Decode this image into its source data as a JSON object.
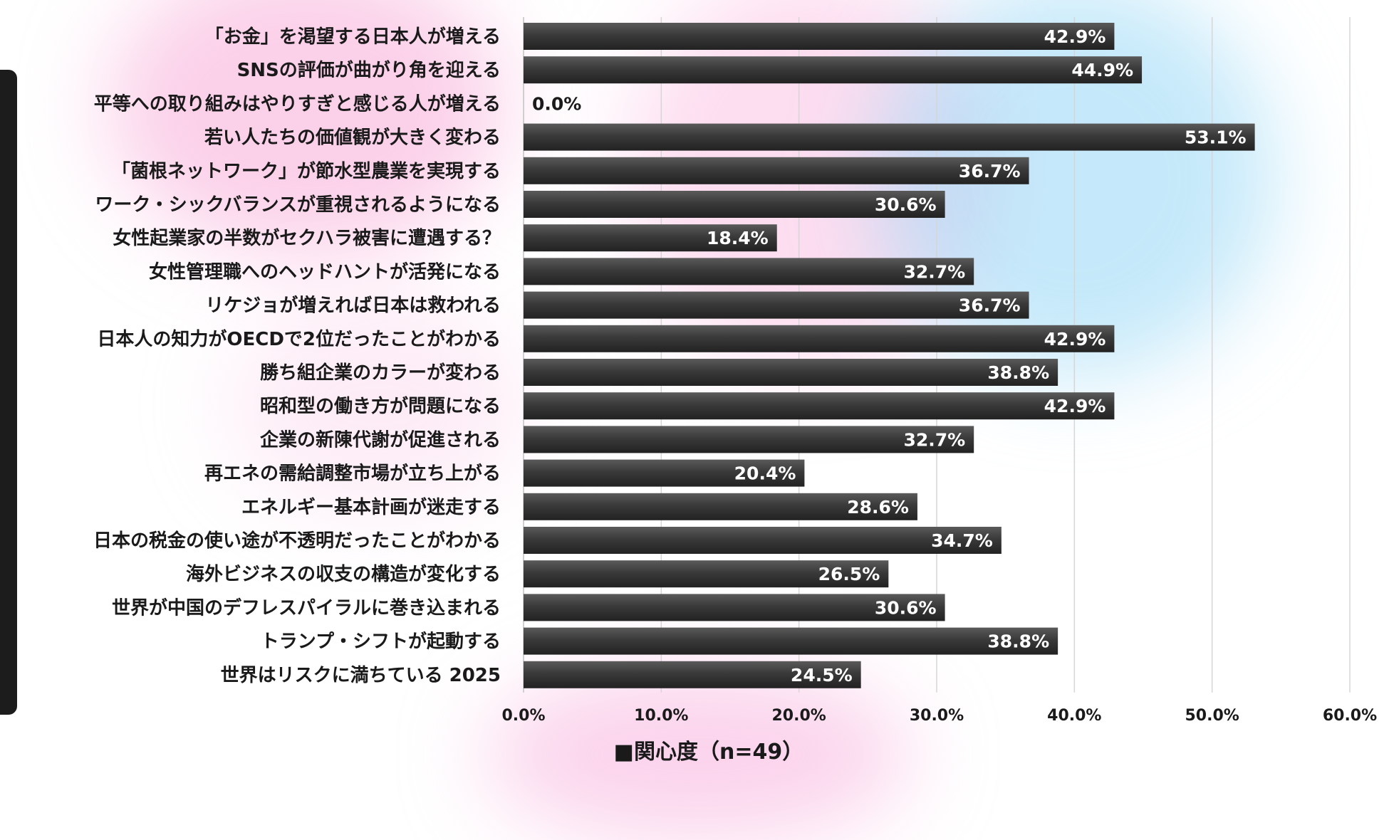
{
  "chart_data": {
    "type": "bar",
    "orientation": "horizontal",
    "categories": [
      "「お金」を渇望する日本人が増える",
      "SNSの評価が曲がり角を迎える",
      "平等への取り組みはやりすぎと感じる人が増える",
      "若い人たちの価値観が大きく変わる",
      "「菌根ネットワーク」が節水型農業を実現する",
      "ワーク・シックバランスが重視されるようになる",
      "女性起業家の半数がセクハラ被害に遭遇する？",
      "女性管理職へのヘッドハントが活発になる",
      "リケジョが増えれば日本は救われる",
      "日本人の知力がOECDで2位だったことがわかる",
      "勝ち組企業のカラーが変わる",
      "昭和型の働き方が問題になる",
      "企業の新陳代謝が促進される",
      "再エネの需給調整市場が立ち上がる",
      "エネルギー基本計画が迷走する",
      "日本の税金の使い途が不透明だったことがわかる",
      "海外ビジネスの収支の構造が変化する",
      "世界が中国のデフレスパイラルに巻き込まれる",
      "トランプ・シフトが起動する",
      "世界はリスクに満ちている 2025"
    ],
    "values": [
      42.9,
      44.9,
      0.0,
      53.1,
      36.7,
      30.6,
      18.4,
      32.7,
      36.7,
      42.9,
      38.8,
      42.9,
      32.7,
      20.4,
      28.6,
      34.7,
      26.5,
      30.6,
      38.8,
      24.5
    ],
    "value_labels": [
      "42.9%",
      "44.9%",
      "0.0%",
      "53.1%",
      "36.7%",
      "30.6%",
      "18.4%",
      "32.7%",
      "36.7%",
      "42.9%",
      "38.8%",
      "42.9%",
      "32.7%",
      "20.4%",
      "28.6%",
      "34.7%",
      "26.5%",
      "30.6%",
      "38.8%",
      "24.5%"
    ],
    "xlim": [
      0,
      60
    ],
    "x_ticks": [
      0,
      10,
      20,
      30,
      40,
      50,
      60
    ],
    "x_tick_labels": [
      "0.0%",
      "10.0%",
      "20.0%",
      "30.0%",
      "40.0%",
      "50.0%",
      "60.0%"
    ],
    "grid": true,
    "series_name": "関心度（n=49）",
    "legend_marker": "■",
    "legend_position": "bottom",
    "bar_color": "#3a3a3a",
    "bar_label_color": "#ffffff",
    "zero_label_color": "#1a1a1a"
  }
}
